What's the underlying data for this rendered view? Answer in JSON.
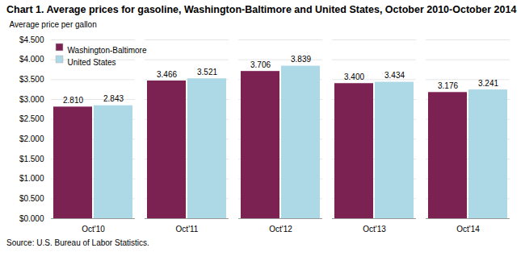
{
  "chart_data": {
    "type": "bar",
    "title": "Chart 1. Average prices for gasoline, Washington-Baltimore and United States, October 2010-October 2014",
    "ylabel": "Average price per gallon",
    "source": "Source: U.S. Bureau of Labor Statistics.",
    "categories": [
      "Oct'10",
      "Oct'11",
      "Oct'12",
      "Oct'13",
      "Oct'14"
    ],
    "series": [
      {
        "name": "Washington-Baltimore",
        "color": "#7B2252",
        "values": [
          2.81,
          3.466,
          3.706,
          3.4,
          3.176
        ],
        "value_labels": [
          "2.810",
          "3.466",
          "3.706",
          "3.400",
          "3.176"
        ]
      },
      {
        "name": "United States",
        "color": "#ADD8E6",
        "values": [
          2.843,
          3.521,
          3.839,
          3.434,
          3.241
        ],
        "value_labels": [
          "2.843",
          "3.521",
          "3.839",
          "3.434",
          "3.241"
        ]
      }
    ],
    "ylim": [
      0,
      4.5
    ],
    "yticks": [
      {
        "value": 0.0,
        "label": "$0.000"
      },
      {
        "value": 0.5,
        "label": "$0.500"
      },
      {
        "value": 1.0,
        "label": "$1.000"
      },
      {
        "value": 1.5,
        "label": "$1.500"
      },
      {
        "value": 2.0,
        "label": "$2.000"
      },
      {
        "value": 2.5,
        "label": "$2.500"
      },
      {
        "value": 3.0,
        "label": "$3.000"
      },
      {
        "value": 3.5,
        "label": "$3.500"
      },
      {
        "value": 4.0,
        "label": "$4.000"
      },
      {
        "value": 4.5,
        "label": "$4.500"
      }
    ],
    "grid": true,
    "legend": "upper left",
    "data_labels": true
  }
}
